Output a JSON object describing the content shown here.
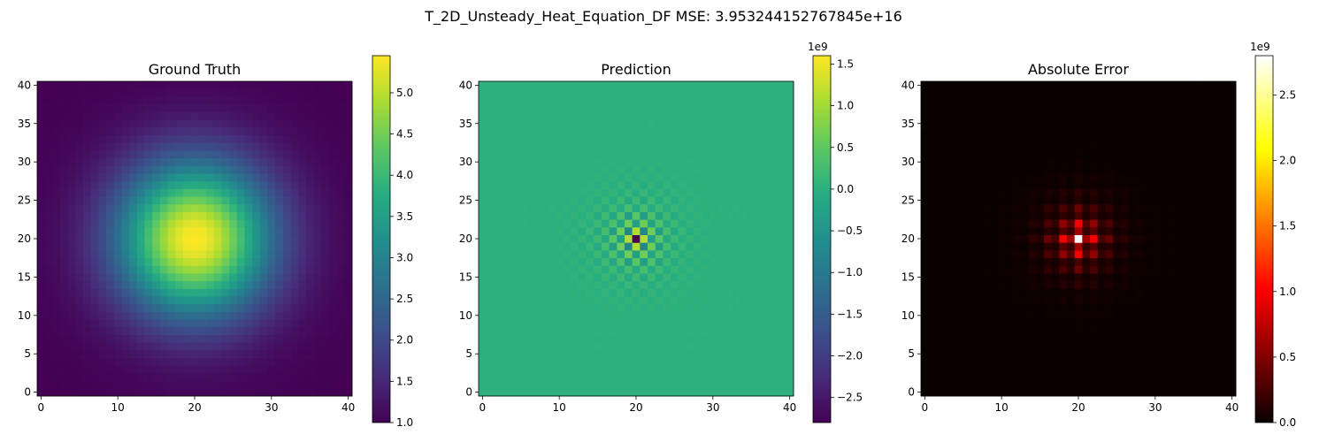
{
  "suptitle": "T_2D_Unsteady_Heat_Equation_DF MSE: 3.953244152767845e+16",
  "chart_data": [
    {
      "type": "heatmap",
      "title": "Ground Truth",
      "grid_size": 41,
      "x_range": [
        -0.5,
        40.5
      ],
      "y_range": [
        -0.5,
        40.5
      ],
      "x_ticks": [
        0,
        10,
        20,
        30,
        40
      ],
      "y_ticks": [
        0,
        5,
        10,
        15,
        20,
        25,
        30,
        35,
        40
      ],
      "colormap": "viridis",
      "field": "gaussian",
      "center": [
        20,
        20
      ],
      "min": 1.0,
      "max": 5.45,
      "colorbar": {
        "range": [
          1.0,
          5.45
        ],
        "ticks": [
          1.0,
          1.5,
          2.0,
          2.5,
          3.0,
          3.5,
          4.0,
          4.5,
          5.0
        ],
        "tick_labels": [
          "1.0",
          "1.5",
          "2.0",
          "2.5",
          "3.0",
          "3.5",
          "4.0",
          "4.5",
          "5.0"
        ],
        "offset_label": ""
      }
    },
    {
      "type": "heatmap",
      "title": "Prediction",
      "grid_size": 41,
      "x_range": [
        -0.5,
        40.5
      ],
      "y_range": [
        -0.5,
        40.5
      ],
      "x_ticks": [
        0,
        10,
        20,
        30,
        40
      ],
      "y_ticks": [
        0,
        5,
        10,
        15,
        20,
        25,
        30,
        35,
        40
      ],
      "colormap": "viridis",
      "field": "checker",
      "center": [
        20,
        20
      ],
      "background_value": 0.02,
      "peak_value": -2.8,
      "colorbar": {
        "range": [
          -2.8,
          1.6
        ],
        "ticks": [
          -2.5,
          -2.0,
          -1.5,
          -1.0,
          -0.5,
          0.0,
          0.5,
          1.0,
          1.5
        ],
        "tick_labels": [
          "−2.5",
          "−2.0",
          "−1.5",
          "−1.0",
          "−0.5",
          "0.0",
          "0.5",
          "1.0",
          "1.5"
        ],
        "offset_label": "1e9"
      }
    },
    {
      "type": "heatmap",
      "title": "Absolute Error",
      "grid_size": 41,
      "x_range": [
        -0.5,
        40.5
      ],
      "y_range": [
        -0.5,
        40.5
      ],
      "x_ticks": [
        0,
        10,
        20,
        30,
        40
      ],
      "y_ticks": [
        0,
        5,
        10,
        15,
        20,
        25,
        30,
        35,
        40
      ],
      "colormap": "hot",
      "field": "abs_error",
      "center": [
        20,
        20
      ],
      "peak_value": 2.8,
      "colorbar": {
        "range": [
          0.0,
          2.8
        ],
        "ticks": [
          0.0,
          0.5,
          1.0,
          1.5,
          2.0,
          2.5
        ],
        "tick_labels": [
          "0.0",
          "0.5",
          "1.0",
          "1.5",
          "2.0",
          "2.5"
        ],
        "offset_label": "1e9"
      }
    }
  ]
}
